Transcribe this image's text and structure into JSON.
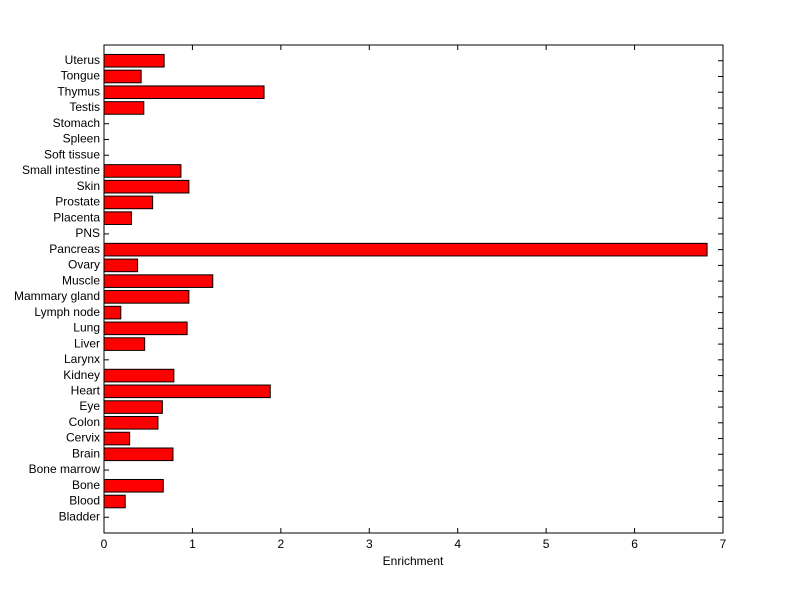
{
  "chart_data": {
    "type": "barh",
    "categories": [
      "Bladder",
      "Blood",
      "Bone",
      "Bone marrow",
      "Brain",
      "Cervix",
      "Colon",
      "Eye",
      "Heart",
      "Kidney",
      "Larynx",
      "Liver",
      "Lung",
      "Lymph node",
      "Mammary gland",
      "Muscle",
      "Ovary",
      "Pancreas",
      "PNS",
      "Placenta",
      "Prostate",
      "Skin",
      "Small intestine",
      "Soft tissue",
      "Spleen",
      "Stomach",
      "Testis",
      "Thymus",
      "Tongue",
      "Uterus"
    ],
    "values": [
      0,
      0.24,
      0.67,
      0,
      0.78,
      0.29,
      0.61,
      0.66,
      1.88,
      0.79,
      0,
      0.46,
      0.94,
      0.19,
      0.96,
      1.23,
      0.38,
      6.82,
      0,
      0.31,
      0.55,
      0.96,
      0.87,
      0,
      0,
      0,
      0.45,
      1.81,
      0.42,
      0.68
    ],
    "color": "#ff0000",
    "xlabel": "Enrichment",
    "xlim": [
      0,
      7
    ],
    "xticks": [
      0,
      1,
      2,
      3,
      4,
      5,
      6,
      7
    ]
  }
}
